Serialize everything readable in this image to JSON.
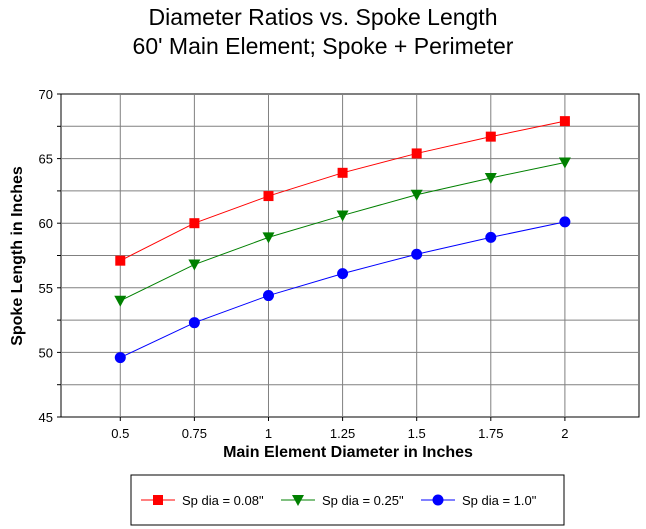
{
  "chart_data": {
    "type": "line",
    "title": "Diameter Ratios vs. Spoke Length",
    "subtitle": "60' Main Element; Spoke + Perimeter",
    "xlabel": "Main Element Diameter in Inches",
    "ylabel": "Spoke Length in Inches",
    "x": [
      0.5,
      0.75,
      1,
      1.25,
      1.5,
      1.75,
      2
    ],
    "x_tick_labels": [
      "0.5",
      "0.75",
      "1",
      "1.25",
      "1.5",
      "1.75",
      "2"
    ],
    "y_ticks": [
      45,
      50,
      55,
      60,
      65,
      70
    ],
    "y_tick_labels": [
      "45",
      "50",
      "55",
      "60",
      "65",
      "70"
    ],
    "xlim": [
      0.3,
      2.25
    ],
    "ylim": [
      45,
      70
    ],
    "grid": true,
    "legend_position": "bottom",
    "series": [
      {
        "name": "Sp dia = 0.08\"",
        "color": "#ff0000",
        "marker": "square",
        "values": [
          57.1,
          60.0,
          62.1,
          63.9,
          65.4,
          66.7,
          67.9
        ]
      },
      {
        "name": "Sp dia = 0.25\"",
        "color": "#008000",
        "marker": "triangle-down",
        "values": [
          54.0,
          56.8,
          58.9,
          60.6,
          62.2,
          63.5,
          64.7
        ]
      },
      {
        "name": "Sp dia = 1.0\"",
        "color": "#0000ff",
        "marker": "circle",
        "values": [
          49.6,
          52.3,
          54.4,
          56.1,
          57.6,
          58.9,
          60.1
        ]
      }
    ]
  }
}
